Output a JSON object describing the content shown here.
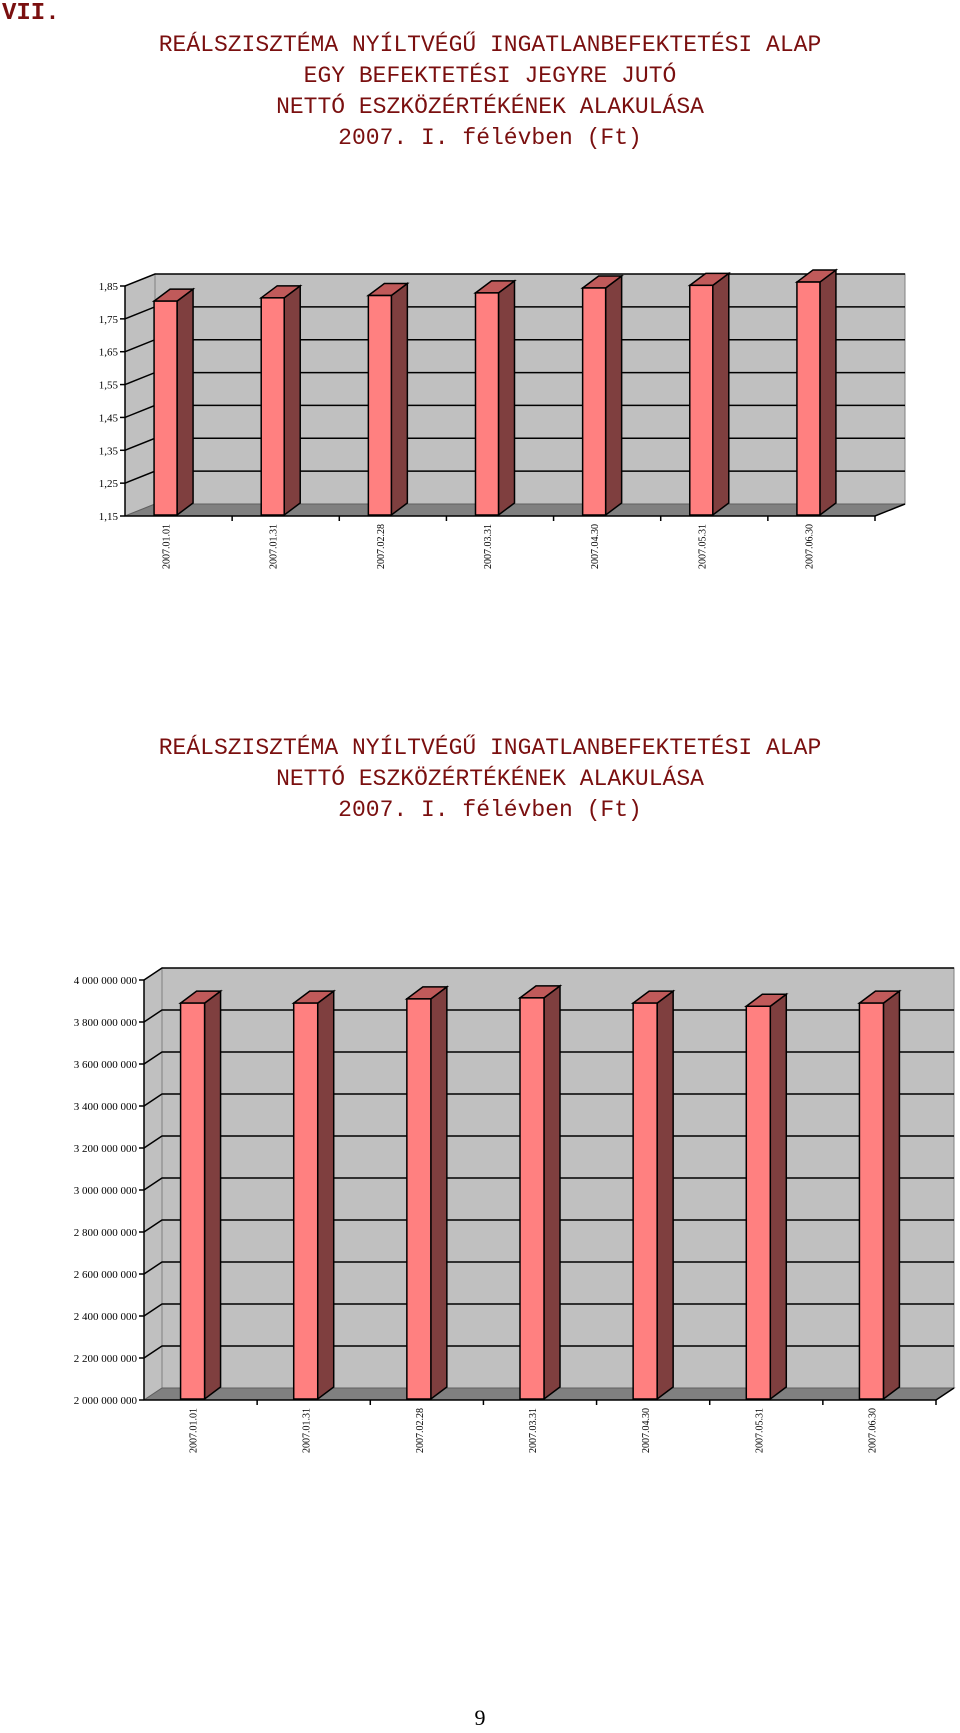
{
  "section_label": "VII.",
  "page_number": "9",
  "colors": {
    "title": "#7a0f0f",
    "bar_front": "#ff8080",
    "bar_side": "#7f3f3f",
    "bar_top": "#c05a5a",
    "wall": "#c0c0c0",
    "floor": "#808080",
    "grid": "#000000"
  },
  "chart_data": [
    {
      "type": "bar",
      "title_lines": [
        "REÁLSZISZTÉMA NYÍLTVÉGŰ INGATLANBEFEKTETÉSI ALAP",
        "EGY BEFEKTETÉSI JEGYRE JUTÓ",
        "NETTÓ ESZKÖZÉRTÉKÉNEK ALAKULÁSA",
        "2007. I. félévben (Ft)"
      ],
      "categories": [
        "2007.01.01",
        "2007.01.31",
        "2007.02.28",
        "2007.03.31",
        "2007.04.30",
        "2007.05.31",
        "2007.06.30"
      ],
      "values": [
        1.804,
        1.814,
        1.821,
        1.829,
        1.844,
        1.852,
        1.862
      ],
      "ylim": [
        1.15,
        1.85
      ],
      "yticks": [
        1.15,
        1.25,
        1.35,
        1.45,
        1.55,
        1.65,
        1.75,
        1.85
      ],
      "ytick_labels": [
        "1,15",
        "1,25",
        "1,35",
        "1,45",
        "1,55",
        "1,65",
        "1,75",
        "1,85"
      ],
      "grid": true,
      "style": "3d-column"
    },
    {
      "type": "bar",
      "title_lines": [
        "REÁLSZISZTÉMA NYÍLTVÉGŰ INGATLANBEFEKTETÉSI ALAP",
        "NETTÓ ESZKÖZÉRTÉKÉNEK ALAKULÁSA",
        "2007. I. félévben (Ft)"
      ],
      "categories": [
        "2007.01.01",
        "2007.01.31",
        "2007.02.28",
        "2007.03.31",
        "2007.04.30",
        "2007.05.31",
        "2007.06.30"
      ],
      "values": [
        3890000000,
        3890000000,
        3910000000,
        3915000000,
        3890000000,
        3875000000,
        3890000000
      ],
      "ylim": [
        2000000000,
        4000000000
      ],
      "yticks": [
        2000000000,
        2200000000,
        2400000000,
        2600000000,
        2800000000,
        3000000000,
        3200000000,
        3400000000,
        3600000000,
        3800000000,
        4000000000
      ],
      "ytick_labels": [
        "2 000 000 000",
        "2 200 000 000",
        "2 400 000 000",
        "2 600 000 000",
        "2 800 000 000",
        "3 000 000 000",
        "3 200 000 000",
        "3 400 000 000",
        "3 600 000 000",
        "3 800 000 000",
        "4 000 000 000"
      ],
      "grid": true,
      "style": "3d-column"
    }
  ]
}
